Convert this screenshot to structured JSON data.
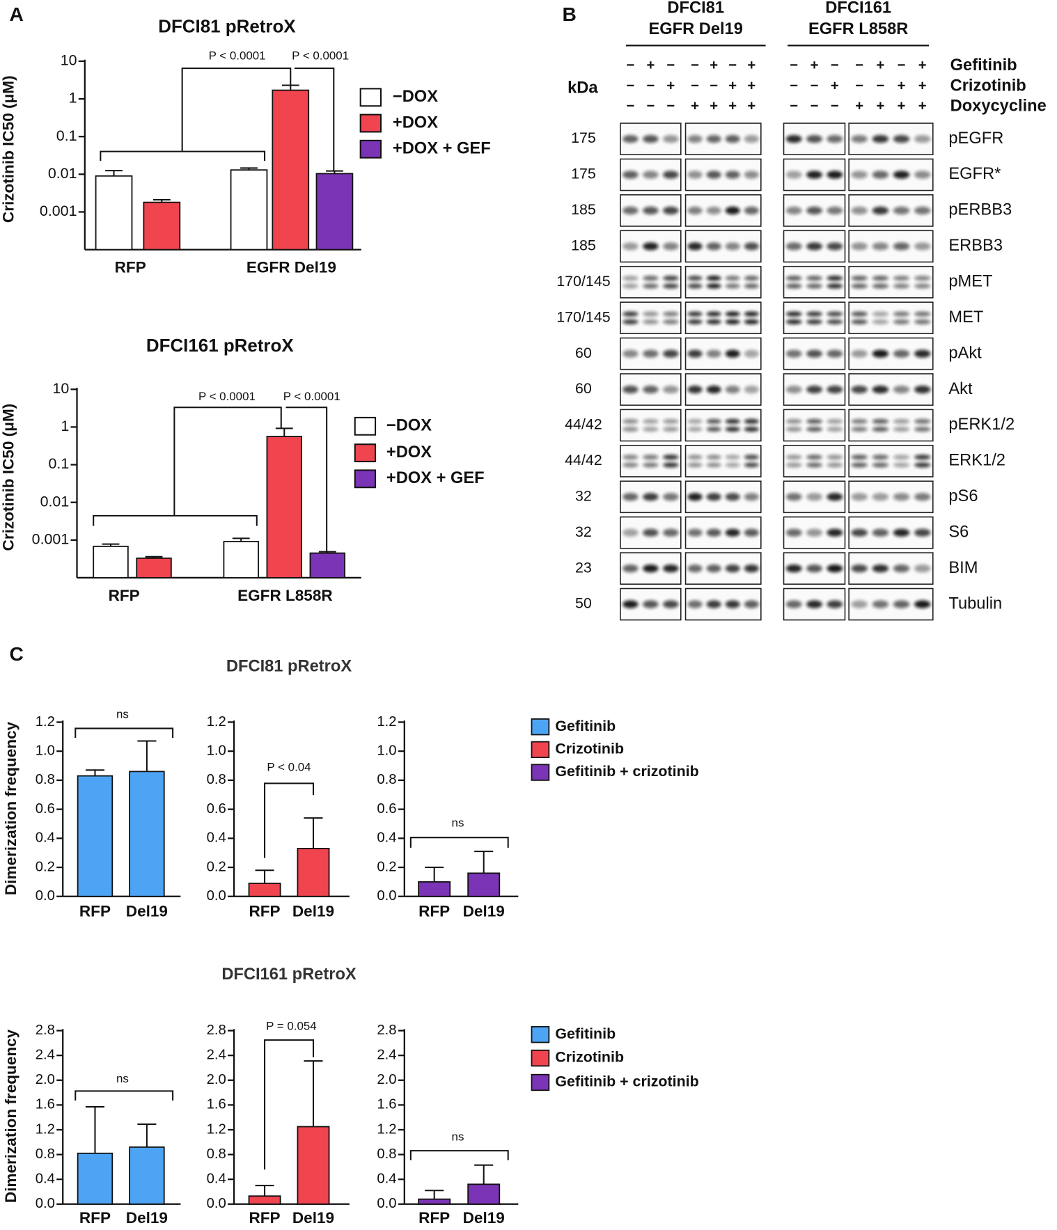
{
  "panel_labels": [
    "A",
    "B",
    "C"
  ],
  "chart_data": [
    {
      "type": "bar",
      "yscale": "log",
      "title": "DFCI81 pRetroX",
      "ylabel": "Crizotinib IC50 (μM)",
      "categories": [
        "RFP",
        "EGFR Del19"
      ],
      "series": [
        {
          "name": "−DOX",
          "color": "#ffffff",
          "values": [
            0.009,
            0.013
          ],
          "errors": [
            0.0035,
            0.0016
          ]
        },
        {
          "name": "+DOX",
          "color": "#f0444f",
          "values": [
            0.0018,
            1.7
          ],
          "errors": [
            0.0003,
            0.6
          ]
        },
        {
          "name": "+DOX + GEF",
          "color": "#7b34b5",
          "values": [
            null,
            0.0104
          ],
          "errors": [
            null,
            0.0018
          ]
        }
      ],
      "ylim": [
        0.0001,
        10
      ],
      "yticks": [
        10,
        1,
        0.1,
        0.01,
        0.001
      ],
      "annotations": [
        "P < 0.0001",
        "P < 0.0001"
      ]
    },
    {
      "type": "bar",
      "yscale": "log",
      "title": "DFCI161 pRetroX",
      "ylabel": "Crizotinib IC50 (μM)",
      "categories": [
        "RFP",
        "EGFR L858R"
      ],
      "series": [
        {
          "name": "−DOX",
          "color": "#ffffff",
          "values": [
            0.00068,
            0.00091
          ],
          "errors": [
            0.0001,
            0.0002
          ]
        },
        {
          "name": "+DOX",
          "color": "#f0444f",
          "values": [
            0.00033,
            0.56
          ],
          "errors": [
            3e-05,
            0.36
          ]
        },
        {
          "name": "+DOX + GEF",
          "color": "#7b34b5",
          "values": [
            null,
            0.00045
          ],
          "errors": [
            null,
            4e-05
          ]
        }
      ],
      "ylim": [
        0.0001,
        10
      ],
      "yticks": [
        10,
        1,
        0.1,
        0.01,
        0.001
      ],
      "annotations": [
        "P < 0.0001",
        "P < 0.0001"
      ]
    },
    {
      "type": "bar",
      "ylabel": "Dimerization frequency",
      "categories": [
        "RFP",
        "Del19"
      ],
      "series": [
        {
          "name": "Gefitinib",
          "color": "#4ea4f4",
          "values": [
            0.83,
            0.86
          ],
          "errors": [
            0.04,
            0.21
          ]
        }
      ],
      "ylim": [
        0,
        1.2
      ],
      "yticks": [
        {
          "value": 0,
          "label": "0.0"
        },
        0.2,
        0.4,
        0.6,
        0.8,
        {
          "value": 1,
          "label": "1.0"
        },
        1.2
      ],
      "annotations": [
        "ns"
      ]
    },
    {
      "type": "bar",
      "title": "DFCI81 pRetroX",
      "categories": [
        "RFP",
        "Del19"
      ],
      "series": [
        {
          "name": "Crizotinib",
          "color": "#f0444f",
          "values": [
            0.09,
            0.33
          ],
          "errors": [
            0.09,
            0.21
          ]
        }
      ],
      "ylim": [
        0,
        1.2
      ],
      "yticks": [
        {
          "value": 0,
          "label": "0.0"
        },
        0.2,
        0.4,
        0.6,
        0.8,
        {
          "value": 1,
          "label": "1.0"
        },
        1.2
      ],
      "annotations": [
        "P < 0.04"
      ]
    },
    {
      "type": "bar",
      "categories": [
        "RFP",
        "Del19"
      ],
      "series": [
        {
          "name": "Gefitinib + crizotinib",
          "color": "#7b34b5",
          "values": [
            0.1,
            0.16
          ],
          "errors": [
            0.1,
            0.15
          ]
        }
      ],
      "ylim": [
        0,
        1.2
      ],
      "yticks": [
        {
          "value": 0,
          "label": "0.0"
        },
        0.2,
        0.4,
        0.6,
        0.8,
        {
          "value": 1,
          "label": "1.0"
        },
        1.2
      ],
      "annotations": [
        "ns"
      ]
    },
    {
      "type": "bar",
      "ylabel": "Dimerization frequency",
      "categories": [
        "RFP",
        "Del19"
      ],
      "series": [
        {
          "name": "Gefitinib",
          "color": "#4ea4f4",
          "values": [
            0.82,
            0.92
          ],
          "errors": [
            0.75,
            0.37
          ]
        }
      ],
      "ylim": [
        0,
        2.8
      ],
      "yticks": [
        {
          "value": 0,
          "label": "0.0"
        },
        0.4,
        0.8,
        1.2,
        1.6,
        {
          "value": 2,
          "label": "2.0"
        },
        2.4,
        2.8
      ],
      "annotations": [
        "ns"
      ]
    },
    {
      "type": "bar",
      "title": "DFCI161 pRetroX",
      "categories": [
        "RFP",
        "Del19"
      ],
      "series": [
        {
          "name": "Crizotinib",
          "color": "#f0444f",
          "values": [
            0.13,
            1.25
          ],
          "errors": [
            0.17,
            1.06
          ]
        }
      ],
      "ylim": [
        0,
        2.8
      ],
      "yticks": [
        {
          "value": 0,
          "label": "0.0"
        },
        0.4,
        0.8,
        1.2,
        1.6,
        {
          "value": 2,
          "label": "2.0"
        },
        2.4,
        2.8
      ],
      "annotations": [
        "P = 0.054"
      ]
    },
    {
      "type": "bar",
      "categories": [
        "RFP",
        "Del19"
      ],
      "series": [
        {
          "name": "Gefitinib + crizotinib",
          "color": "#7b34b5",
          "values": [
            0.08,
            0.32
          ],
          "errors": [
            0.14,
            0.31
          ]
        }
      ],
      "ylim": [
        0,
        2.8
      ],
      "yticks": [
        {
          "value": 0,
          "label": "0.0"
        },
        0.4,
        0.8,
        1.2,
        1.6,
        {
          "value": 2,
          "label": "2.0"
        },
        2.4,
        2.8
      ],
      "annotations": [
        "ns"
      ]
    }
  ],
  "blot": {
    "cell_lines": [
      {
        "name": "DFCI81",
        "mutation": "EGFR Del19"
      },
      {
        "name": "DFCI161",
        "mutation": "EGFR L858R"
      }
    ],
    "kda_label": "kDa",
    "treatments": [
      {
        "name": "Gefitinib",
        "signs": [
          "−",
          "+",
          "−",
          "−",
          "+",
          "−",
          "+",
          "−",
          "+",
          "−",
          "−",
          "+",
          "−",
          "+"
        ]
      },
      {
        "name": "Crizotinib",
        "signs": [
          "−",
          "−",
          "+",
          "−",
          "−",
          "+",
          "+",
          "−",
          "−",
          "+",
          "−",
          "−",
          "+",
          "+"
        ]
      },
      {
        "name": "Doxycycline",
        "signs": [
          "−",
          "−",
          "−",
          "+",
          "+",
          "+",
          "+",
          "−",
          "−",
          "−",
          "+",
          "+",
          "+",
          "+"
        ]
      }
    ],
    "rows": [
      {
        "kda": "175",
        "protein": "pEGFR"
      },
      {
        "kda": "175",
        "protein": "EGFR*"
      },
      {
        "kda": "185",
        "protein": "pERBB3"
      },
      {
        "kda": "185",
        "protein": "ERBB3"
      },
      {
        "kda": "170/145",
        "protein": "pMET"
      },
      {
        "kda": "170/145",
        "protein": "MET"
      },
      {
        "kda": "60",
        "protein": "pAkt"
      },
      {
        "kda": "60",
        "protein": "Akt"
      },
      {
        "kda": "44/42",
        "protein": "pERK1/2"
      },
      {
        "kda": "44/42",
        "protein": "ERK1/2"
      },
      {
        "kda": "32",
        "protein": "pS6"
      },
      {
        "kda": "32",
        "protein": "S6"
      },
      {
        "kda": "23",
        "protein": "BIM"
      },
      {
        "kda": "50",
        "protein": "Tubulin"
      }
    ]
  }
}
